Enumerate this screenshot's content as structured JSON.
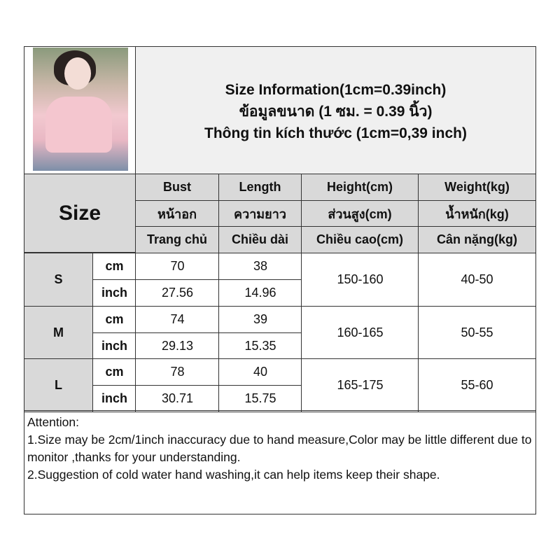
{
  "title_lines": [
    "Size Information(1cm=0.39inch)",
    "ข้อมูลขนาด (1 ซม. = 0.39 นิ้ว)",
    "Thông tin kích thước (1cm=0,39 inch)"
  ],
  "size_header": "Size",
  "columns": [
    [
      "Bust",
      "หน้าอก",
      "Trang chủ"
    ],
    [
      "Length",
      "ความยาว",
      "Chiều dài"
    ],
    [
      "Height(cm)",
      "ส่วนสูง(cm)",
      "Chiều cao(cm)"
    ],
    [
      "Weight(kg)",
      "น้ำหนัก(kg)",
      "Cân nặng(kg)"
    ]
  ],
  "rows": [
    {
      "size": "S",
      "cm": {
        "unit": "cm",
        "bust": "70",
        "length": "38"
      },
      "inch": {
        "unit": "inch",
        "bust": "27.56",
        "length": "14.96"
      },
      "height": "150-160",
      "weight": "40-50"
    },
    {
      "size": "M",
      "cm": {
        "unit": "cm",
        "bust": "74",
        "length": "39"
      },
      "inch": {
        "unit": "inch",
        "bust": "29.13",
        "length": "15.35"
      },
      "height": "160-165",
      "weight": "50-55"
    },
    {
      "size": "L",
      "cm": {
        "unit": "cm",
        "bust": "78",
        "length": "40"
      },
      "inch": {
        "unit": "inch",
        "bust": "30.71",
        "length": "15.75"
      },
      "height": "165-175",
      "weight": "55-60"
    }
  ],
  "attention": [
    "Attention:",
    "1.Size may be 2cm/1inch inaccuracy due to hand measure,Color may be little different due to monitor ,thanks for your understanding.",
    "2.Suggestion of cold water hand washing,it can help items keep their shape."
  ],
  "colors": {
    "header_bg": "#d9d9d9",
    "title_bg": "#f0f0f0"
  }
}
